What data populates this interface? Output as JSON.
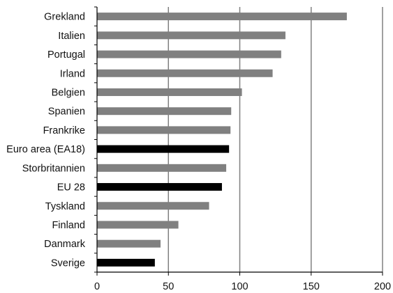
{
  "chart_data": {
    "type": "bar",
    "orientation": "horizontal",
    "title": "",
    "xlabel": "",
    "ylabel": "",
    "xlim": [
      0,
      200
    ],
    "x_ticks": [
      0,
      50,
      100,
      150,
      200
    ],
    "grid": "vertical",
    "legend": "none",
    "colors": {
      "default": "#808080",
      "highlight": "#000000",
      "grid": "#808080",
      "axis": "#000000"
    },
    "categories": [
      "Grekland",
      "Italien",
      "Portugal",
      "Irland",
      "Belgien",
      "Spanien",
      "Frankrike",
      "Euro area (EA18)",
      "Storbritannien",
      "EU 28",
      "Tyskland",
      "Finland",
      "Danmark",
      "Sverige"
    ],
    "values": [
      175,
      132,
      129,
      123,
      101.5,
      94,
      93.5,
      92.5,
      90.5,
      87.5,
      78.5,
      57,
      44.5,
      40.5
    ],
    "highlighted": [
      false,
      false,
      false,
      false,
      false,
      false,
      false,
      true,
      false,
      true,
      false,
      false,
      false,
      true
    ]
  }
}
